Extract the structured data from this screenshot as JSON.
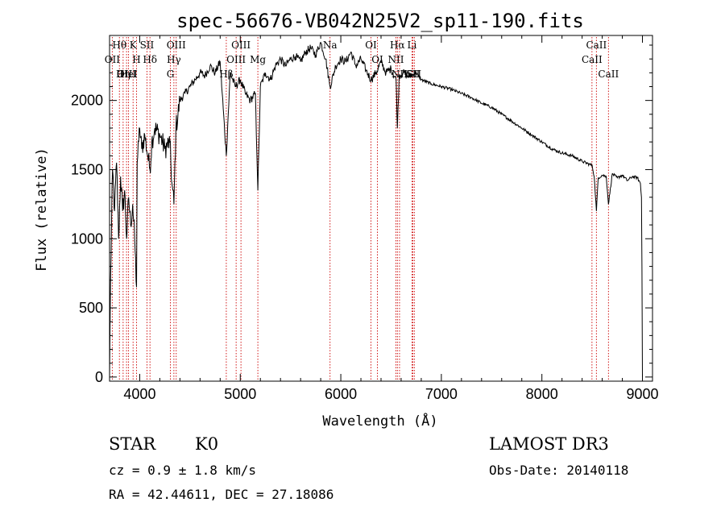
{
  "chart_data": {
    "type": "line",
    "title": "spec-56676-VB042N25V2_sp11-190.fits",
    "xlabel": "Wavelength (Å)",
    "ylabel": "Flux (relative)",
    "xlim": [
      3700,
      9100
    ],
    "ylim": [
      -30,
      2470
    ],
    "x_ticks": [
      4000,
      5000,
      6000,
      7000,
      8000,
      9000
    ],
    "y_ticks": [
      0,
      500,
      1000,
      1500,
      2000
    ],
    "grid": false,
    "series": [
      {
        "name": "flux",
        "x": [
          3700,
          3710,
          3730,
          3750,
          3770,
          3790,
          3810,
          3830,
          3850,
          3870,
          3890,
          3910,
          3930,
          3950,
          3968,
          3975,
          3990,
          4000,
          4020,
          4050,
          4080,
          4102,
          4120,
          4150,
          4200,
          4250,
          4300,
          4320,
          4340,
          4360,
          4400,
          4450,
          4500,
          4550,
          4600,
          4650,
          4700,
          4750,
          4800,
          4861,
          4900,
          4950,
          5000,
          5050,
          5100,
          5150,
          5175,
          5200,
          5250,
          5300,
          5350,
          5400,
          5450,
          5500,
          5550,
          5600,
          5650,
          5700,
          5750,
          5800,
          5850,
          5893,
          5950,
          6000,
          6050,
          6100,
          6150,
          6200,
          6250,
          6300,
          6350,
          6400,
          6450,
          6500,
          6550,
          6563,
          6580,
          6620,
          6680,
          6700,
          6750,
          6800,
          6900,
          7000,
          7100,
          7200,
          7300,
          7400,
          7500,
          7600,
          7700,
          7800,
          7900,
          8000,
          8100,
          8200,
          8300,
          8400,
          8500,
          8520,
          8542,
          8560,
          8600,
          8640,
          8662,
          8700,
          8750,
          8800,
          8850,
          8900,
          8950,
          8980,
          8990,
          8995,
          9000
        ],
        "values": [
          0,
          700,
          1500,
          1200,
          1550,
          1000,
          1450,
          1200,
          1350,
          1000,
          1300,
          1100,
          1250,
          1000,
          650,
          1550,
          1700,
          1800,
          1650,
          1750,
          1600,
          1500,
          1700,
          1800,
          1750,
          1650,
          1700,
          1400,
          1250,
          1800,
          2000,
          2050,
          2100,
          2150,
          2200,
          2180,
          2250,
          2200,
          2280,
          1600,
          2200,
          2100,
          2150,
          2050,
          2000,
          2050,
          1350,
          2100,
          2200,
          2150,
          2250,
          2300,
          2250,
          2300,
          2320,
          2280,
          2350,
          2380,
          2330,
          2420,
          2300,
          2100,
          2250,
          2300,
          2280,
          2350,
          2250,
          2300,
          2220,
          2150,
          2200,
          2280,
          2200,
          2230,
          2150,
          1800,
          2180,
          2200,
          2170,
          2180,
          2200,
          2150,
          2120,
          2100,
          2080,
          2050,
          2020,
          1980,
          1950,
          1900,
          1850,
          1800,
          1750,
          1700,
          1650,
          1620,
          1600,
          1560,
          1530,
          1450,
          1200,
          1440,
          1460,
          1450,
          1250,
          1470,
          1440,
          1460,
          1420,
          1450,
          1440,
          1400,
          1300,
          800,
          0
        ]
      }
    ],
    "lines": [
      {
        "label": "Hθ",
        "x": 3798
      },
      {
        "label": "OII",
        "x": 3727
      },
      {
        "label": "OIII",
        "x": 3869
      },
      {
        "label": "K",
        "x": 3934
      },
      {
        "label": "HeI",
        "x": 3889
      },
      {
        "label": "Hη",
        "x": 3835
      },
      {
        "label": "SII",
        "x": 4072
      },
      {
        "label": "H",
        "x": 3968
      },
      {
        "label": "Hδ",
        "x": 4102
      },
      {
        "label": "OIII",
        "x": 4363
      },
      {
        "label": "Hγ",
        "x": 4340
      },
      {
        "label": "G",
        "x": 4305
      },
      {
        "label": "OIII",
        "x": 5007
      },
      {
        "label": "OIII",
        "x": 4959
      },
      {
        "label": "Hβ",
        "x": 4861
      },
      {
        "label": "Mg",
        "x": 5175
      },
      {
        "label": "Na",
        "x": 5893
      },
      {
        "label": "OI",
        "x": 6300
      },
      {
        "label": "OI",
        "x": 6364
      },
      {
        "label": "Hα",
        "x": 6563
      },
      {
        "label": "NII",
        "x": 6548
      },
      {
        "label": "NII",
        "x": 6584
      },
      {
        "label": "SII",
        "x": 6717
      },
      {
        "label": "Li",
        "x": 6708
      },
      {
        "label": "SII",
        "x": 6731
      },
      {
        "label": "CaII",
        "x": 8542
      },
      {
        "label": "CaII",
        "x": 8498
      },
      {
        "label": "CaII",
        "x": 8662
      }
    ]
  },
  "info": {
    "object_class": "STAR",
    "subclass": "K0",
    "survey": "LAMOST DR3",
    "redshift_text": "cz = 0.9 ± 1.8 km/s",
    "obs_date_text": "Obs-Date: 20140118",
    "coords_text": "RA =  42.44611, DEC =  27.18086"
  }
}
